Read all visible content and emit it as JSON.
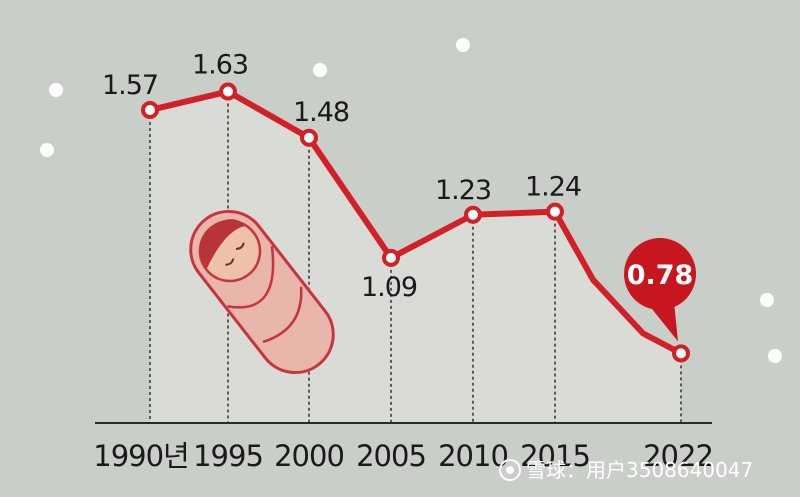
{
  "chart_data": {
    "type": "line",
    "x": [
      "1990년",
      "1995",
      "2000",
      "2005",
      "2010",
      "2015",
      "2022"
    ],
    "values": [
      1.57,
      1.63,
      1.48,
      1.09,
      1.23,
      1.24,
      0.78
    ],
    "ylim": [
      0.7,
      1.7
    ],
    "grid": false,
    "colors": {
      "line": "#d32027",
      "highlight": "#c8161e",
      "area": "#d9dbd6",
      "background": "#c9cec8"
    }
  },
  "watermark": {
    "text": "雪球：用户3508640047",
    "icon": "snowball-logo-icon"
  },
  "decoration": {
    "illustration": "swaddled-baby-icon",
    "background_dots": "snow-dots"
  }
}
